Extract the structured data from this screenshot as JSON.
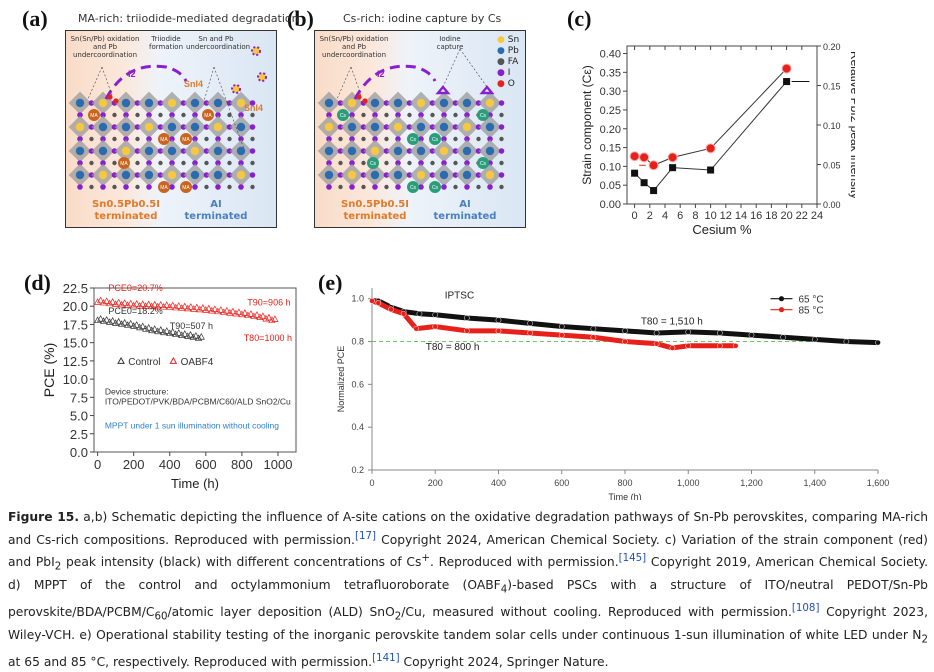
{
  "panels": {
    "a": {
      "label": "(a)",
      "title": "MA-rich: triiodide-mediated degradation",
      "notes": [
        "Sn(Sn/Pb) oxidation and Pb undercoordination",
        "Triiodide formation",
        "Sn and Pb undercoordination"
      ],
      "species": [
        "I2",
        "SnI4",
        "SnI4"
      ],
      "cation": "MA",
      "left_region": {
        "line1": "Sn0.5Pb0.5I",
        "line2": "terminated"
      },
      "right_region": {
        "line1": "AI",
        "line2": "terminated"
      }
    },
    "b": {
      "label": "(b)",
      "title": "Cs-rich: iodine capture by Cs",
      "notes": [
        "Sn(Sn/Pb) oxidation and Pb undercoordination",
        "Iodine capture"
      ],
      "species": [
        "I2"
      ],
      "cation": "Cs",
      "legend": [
        {
          "label": "Sn",
          "color": "#f5c842"
        },
        {
          "label": "Pb",
          "color": "#2b6cb0"
        },
        {
          "label": "FA",
          "color": "#555555"
        },
        {
          "label": "I",
          "color": "#8a1fd1"
        },
        {
          "label": "O",
          "color": "#e82020"
        }
      ],
      "left_region": {
        "line1": "Sn0.5Pb0.5I",
        "line2": "terminated"
      },
      "right_region": {
        "line1": "AI",
        "line2": "terminated"
      }
    },
    "c": {
      "label": "(c)"
    },
    "d": {
      "label": "(d)"
    },
    "e": {
      "label": "(e)"
    }
  },
  "colors": {
    "red": "#e8201a",
    "black": "#111111",
    "green_dash": "#6cc86c",
    "blue_text": "#2f7fd0",
    "orange": "#e07b2a",
    "blue_term": "#4a7fc0"
  },
  "chart_data": [
    {
      "id": "c",
      "type": "line",
      "xlabel": "Cesium %",
      "ylabel": "Strain component (Cε)",
      "ylabel_right": "Relative PbI2 peak intensity",
      "xlim": [
        -1,
        24
      ],
      "ylim": [
        0,
        0.42
      ],
      "ylim_right": [
        0,
        0.2
      ],
      "xticks": [
        0,
        2,
        4,
        6,
        8,
        10,
        12,
        14,
        16,
        18,
        20,
        22,
        24
      ],
      "yticks": [
        "0.00",
        "0.05",
        "0.10",
        "0.15",
        "0.20",
        "0.25",
        "0.30",
        "0.35",
        "0.40"
      ],
      "yticks_right": [
        "0.00",
        "0.05",
        "0.10",
        "0.15",
        "0.20"
      ],
      "series": [
        {
          "name": "Strain component (red)",
          "axis": "left",
          "marker": "circle",
          "color": "#e8201a",
          "x": [
            0,
            1.25,
            2.5,
            5,
            10,
            20
          ],
          "y": [
            0.127,
            0.124,
            0.103,
            0.124,
            0.148,
            0.36
          ]
        },
        {
          "name": "PbI2 peak intensity (black)",
          "axis": "right",
          "marker": "square",
          "color": "#111111",
          "x": [
            0,
            1.25,
            2.5,
            5,
            10,
            20
          ],
          "y": [
            0.039,
            0.027,
            0.017,
            0.046,
            0.043,
            0.155
          ]
        }
      ]
    },
    {
      "id": "d",
      "type": "scatter",
      "xlabel": "Time (h)",
      "ylabel": "PCE (%)",
      "xlim": [
        -20,
        1100
      ],
      "ylim": [
        0,
        22.5
      ],
      "xticks": [
        "0",
        "200",
        "400",
        "600",
        "800",
        "1000"
      ],
      "yticks": [
        "0.0",
        "2.5",
        "5.0",
        "7.5",
        "10.0",
        "12.5",
        "15.0",
        "17.5",
        "20.0",
        "22.5"
      ],
      "series": [
        {
          "name": "Control",
          "marker": "triangle-open",
          "color": "#333333",
          "x": [
            0,
            100,
            200,
            300,
            400,
            500,
            590
          ],
          "y": [
            18.2,
            17.8,
            17.4,
            16.8,
            16.4,
            16.0,
            15.6
          ]
        },
        {
          "name": "OABF4",
          "marker": "triangle-open",
          "color": "#e8201a",
          "x": [
            0,
            100,
            200,
            300,
            400,
            500,
            600,
            700,
            800,
            900,
            1000
          ],
          "y": [
            20.7,
            20.4,
            20.2,
            20.1,
            20.0,
            19.8,
            19.6,
            19.3,
            19.0,
            18.6,
            18.0
          ]
        }
      ],
      "annotations": [
        "PCE0=20.7%",
        "PCE0=18.2%",
        "T90=507 h",
        "T90=906 h",
        "T80=1000 h"
      ],
      "notes": [
        "Device structure:",
        "ITO/PEDOT/PVK/BDA/PCBM/C60/ALD SnO2/Cu",
        "MPPT under 1 sun illumination without cooling"
      ],
      "legend": [
        "Control",
        "OABF4"
      ],
      "legend_position": "center-left"
    },
    {
      "id": "e",
      "type": "line",
      "title": "IPTSC",
      "xlabel": "Time (h)",
      "ylabel": "Normalized PCE",
      "xlim": [
        0,
        1600
      ],
      "ylim": [
        0.2,
        1.05
      ],
      "xticks": [
        "0",
        "200",
        "400",
        "600",
        "800",
        "1,000",
        "1,200",
        "1,400",
        "1,600"
      ],
      "yticks": [
        "0.2",
        "0.4",
        "0.6",
        "0.8",
        "1.0"
      ],
      "reference_line": 0.8,
      "series": [
        {
          "name": "65 °C",
          "color": "#111111",
          "x": [
            0,
            20,
            60,
            100,
            150,
            200,
            300,
            400,
            500,
            600,
            700,
            800,
            900,
            1000,
            1100,
            1200,
            1300,
            1400,
            1500,
            1600
          ],
          "y": [
            0.99,
            0.99,
            0.96,
            0.94,
            0.93,
            0.925,
            0.91,
            0.9,
            0.885,
            0.87,
            0.86,
            0.85,
            0.84,
            0.845,
            0.84,
            0.83,
            0.82,
            0.81,
            0.8,
            0.795
          ]
        },
        {
          "name": "85 °C",
          "color": "#e8201a",
          "x": [
            0,
            20,
            60,
            100,
            140,
            200,
            300,
            400,
            500,
            600,
            700,
            800,
            900,
            950,
            1000,
            1100,
            1150
          ],
          "y": [
            0.99,
            0.98,
            0.95,
            0.93,
            0.86,
            0.87,
            0.85,
            0.85,
            0.84,
            0.83,
            0.82,
            0.8,
            0.79,
            0.77,
            0.78,
            0.78,
            0.78
          ]
        }
      ],
      "annotations": [
        "T80 = 1,510 h",
        "T80 = 800 h"
      ],
      "legend": [
        "65 °C",
        "85 °C"
      ],
      "legend_position": "top-right"
    }
  ],
  "caption": {
    "figure_label": "Figure 15.",
    "text_a": " a,b) Schematic depicting the influence of A-site cations on the oxidative degradation pathways of Sn-Pb perovskites, comparing MA-rich and Cs-rich compositions. Reproduced with permission.",
    "ref1": "[17]",
    "text_b": " Copyright 2024, American Chemical Society. c) Variation of the strain component (red) and PbI",
    "text_b2": " peak intensity (black) with different concentrations of Cs",
    "text_b3": ". Reproduced with permission.",
    "ref2": "[145]",
    "text_c": " Copyright 2019, American Chemical Society. d) MPPT of the control and octylammonium tetrafluoroborate (OABF",
    "text_c2": ")-based PSCs with a structure of ITO/neutral PEDOT/Sn-Pb perovskite/BDA/PCBM/C",
    "text_c3": "/atomic layer deposition (ALD) SnO",
    "text_c4": "/Cu, measured without cooling. Reproduced with permission.",
    "ref3": "[108]",
    "text_d": " Copyright 2023, Wiley-VCH. e) Operational stability testing of the inorganic perovskite tandem solar cells under continuous 1-sun illumination of white LED under N",
    "text_d2": " at 65 and 85 °C, respectively. Reproduced with permission.",
    "ref4": "[141]",
    "text_e": " Copyright 2024, Springer Nature.",
    "sub2": "2",
    "sub4": "4",
    "sub60": "60",
    "sup_plus": "+"
  }
}
